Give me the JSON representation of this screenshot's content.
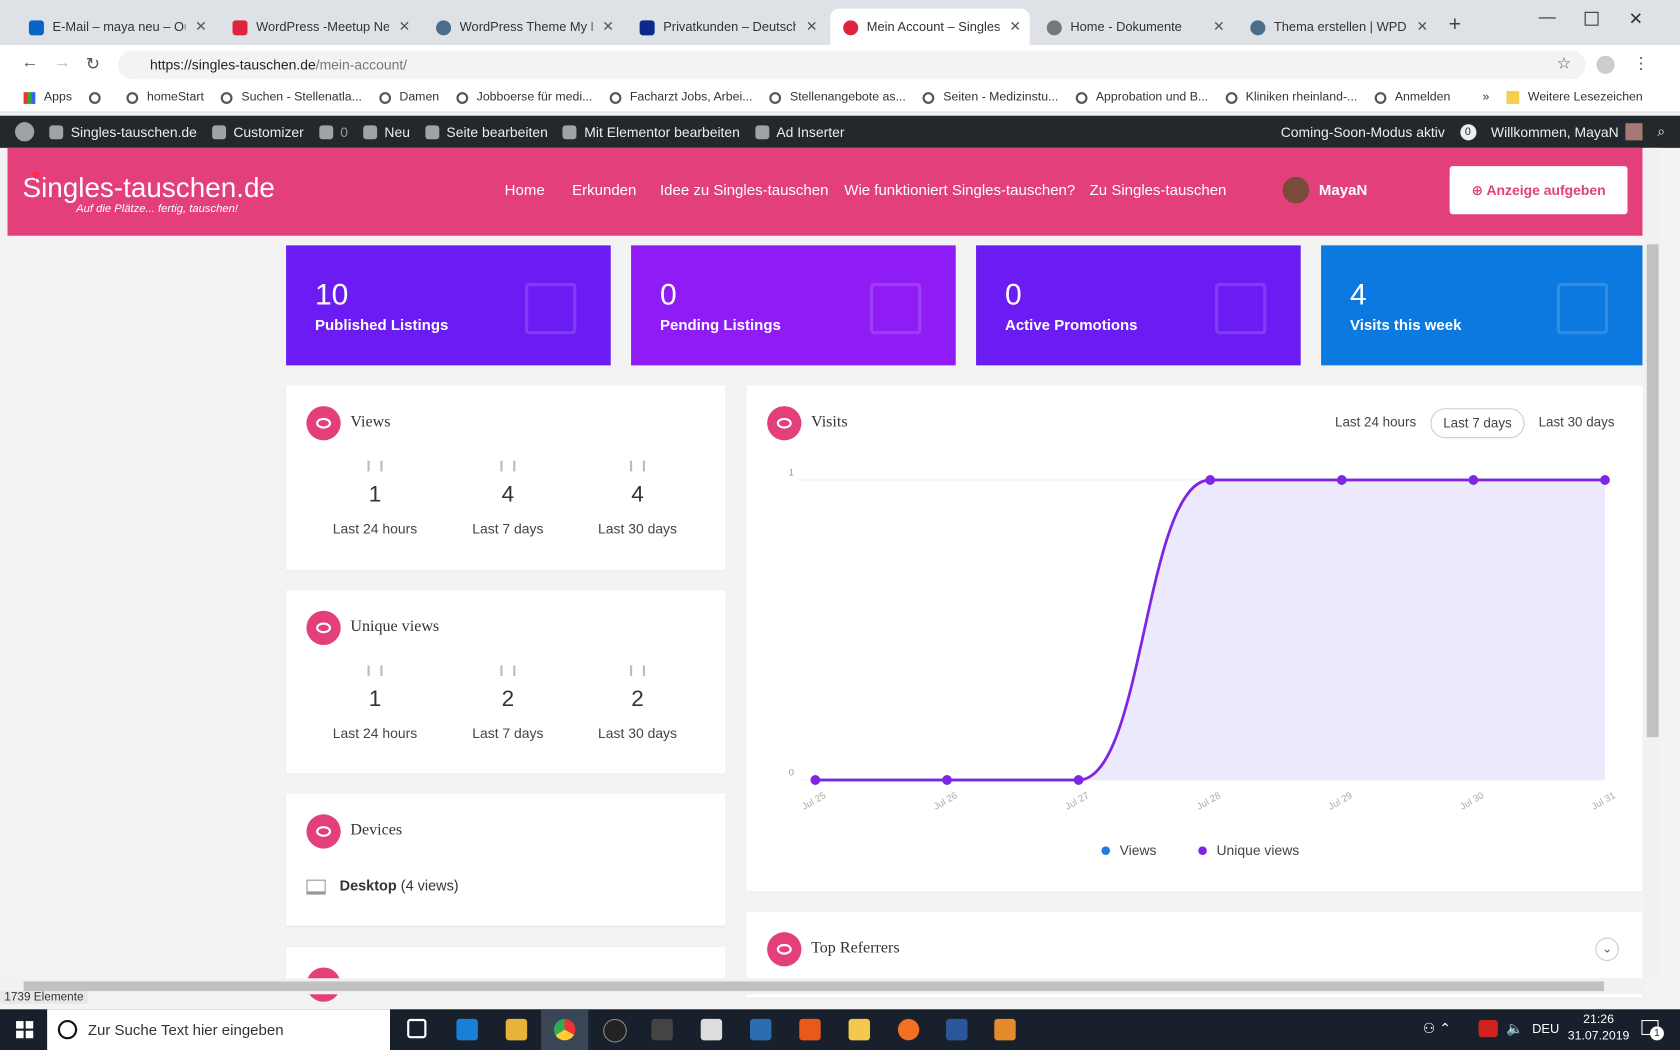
{
  "browser": {
    "tabs": [
      "E-Mail – maya neu – Outlo",
      "WordPress -Meetup Neuss",
      "WordPress Theme My Listi",
      "Privatkunden – Deutsche B",
      "Mein Account – Singles-ta",
      "Home - Dokumente",
      "Thema erstellen | WPDE.o"
    ],
    "url_host": "https://singles-tauschen.de",
    "url_path": "/mein-account/",
    "bookmarks": [
      "Apps",
      "homeStart",
      "Suchen - Stellenatla...",
      "Damen",
      "Jobboerse für medi...",
      "Facharzt Jobs, Arbei...",
      "Stellenangebote as...",
      "Seiten - Medizinstu...",
      "Approbation und B...",
      "Kliniken rheinland-...",
      "Anmelden"
    ],
    "more_bookmarks": "Weitere Lesezeichen"
  },
  "admin_bar": {
    "site": "Singles-tauschen.de",
    "customizer": "Customizer",
    "comments": "0",
    "new": "Neu",
    "edit": "Seite bearbeiten",
    "elementor": "Mit Elementor bearbeiten",
    "ad_inserter": "Ad Inserter",
    "coming_soon": "Coming-Soon-Modus aktiv",
    "notifications": "0",
    "welcome": "Willkommen, MayaN"
  },
  "header": {
    "logo": "Singles-tauschen.de",
    "tagline": "Auf die Plätze... fertig, tauschen!",
    "nav": [
      "Home",
      "Erkunden",
      "Idee zu Singles-tauschen",
      "Wie funktioniert Singles-tauschen?",
      "Zu Singles-tauschen"
    ],
    "user": "MayaN",
    "cta": "Anzeige aufgeben"
  },
  "stats": [
    {
      "value": 10,
      "label": "Published Listings"
    },
    {
      "value": 0,
      "label": "Pending Listings"
    },
    {
      "value": 0,
      "label": "Active Promotions"
    },
    {
      "value": 4,
      "label": "Visits this week"
    }
  ],
  "views": {
    "title": "Views",
    "items": [
      {
        "value": 1,
        "label": "Last 24 hours"
      },
      {
        "value": 4,
        "label": "Last 7 days"
      },
      {
        "value": 4,
        "label": "Last 30 days"
      }
    ]
  },
  "unique_views": {
    "title": "Unique views",
    "items": [
      {
        "value": 1,
        "label": "Last 24 hours"
      },
      {
        "value": 2,
        "label": "Last 7 days"
      },
      {
        "value": 2,
        "label": "Last 30 days"
      }
    ]
  },
  "devices": {
    "title": "Devices",
    "device": "Desktop",
    "count": "(4 views)"
  },
  "visits": {
    "title": "Visits",
    "ranges": [
      "Last 24 hours",
      "Last 7 days",
      "Last 30 days"
    ],
    "chart": {
      "type": "line",
      "x": [
        "Jul 25",
        "Jul 26",
        "Jul 27",
        "Jul 28",
        "Jul 29",
        "Jul 30",
        "Jul 31"
      ],
      "series": [
        {
          "name": "Views",
          "color": "#1e7be0",
          "values": [
            0,
            0,
            0,
            1,
            1,
            1,
            1
          ]
        },
        {
          "name": "Unique views",
          "color": "#8224e3",
          "values": [
            0,
            0,
            0,
            1,
            1,
            1,
            1
          ]
        }
      ],
      "ylim": [
        0,
        1
      ],
      "yticks": [
        0,
        1
      ]
    }
  },
  "top_referrers": {
    "title": "Top Referrers"
  },
  "status": "1739 Elemente",
  "taskbar": {
    "search": "Zur Suche Text hier eingeben",
    "lang": "DEU",
    "time": "21:26",
    "date": "31.07.2019",
    "notifications": "1"
  }
}
